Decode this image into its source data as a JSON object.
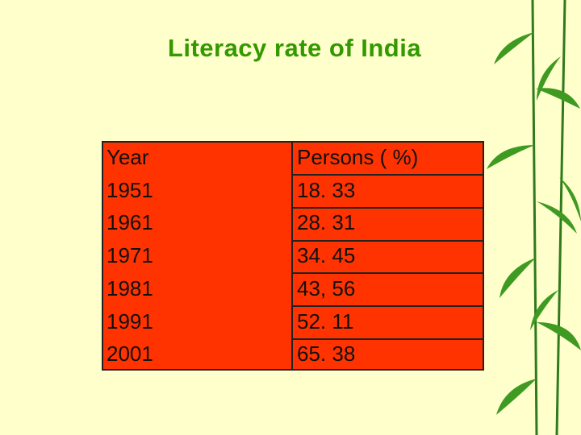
{
  "title": "Literacy rate of India",
  "table": {
    "header": [
      "Year",
      "Persons ( %)"
    ],
    "rows": [
      [
        "1951",
        "18. 33"
      ],
      [
        "1961",
        "28. 31"
      ],
      [
        "1971",
        "34. 45"
      ],
      [
        "1981",
        "43, 56"
      ],
      [
        "1991",
        "52. 11"
      ],
      [
        "2001",
        "65. 38"
      ]
    ]
  }
}
